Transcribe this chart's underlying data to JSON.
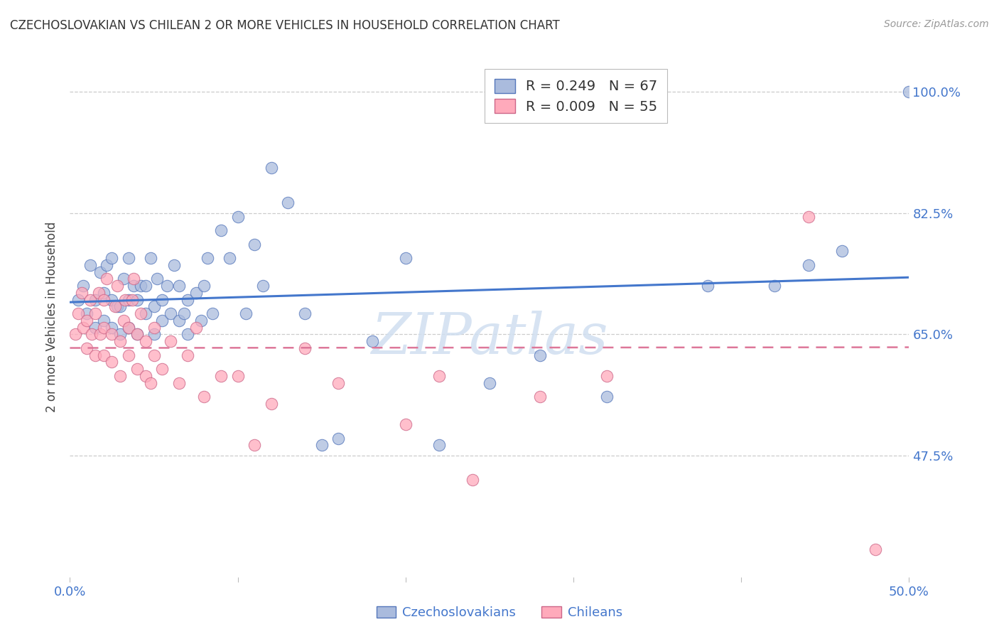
{
  "title": "CZECHOSLOVAKIAN VS CHILEAN 2 OR MORE VEHICLES IN HOUSEHOLD CORRELATION CHART",
  "source": "Source: ZipAtlas.com",
  "ylabel_label": "2 or more Vehicles in Household",
  "xlim": [
    0.0,
    0.5
  ],
  "ylim": [
    0.3,
    1.05
  ],
  "xtick_pos": [
    0.0,
    0.1,
    0.2,
    0.3,
    0.4,
    0.5
  ],
  "xticklabels": [
    "0.0%",
    "",
    "",
    "",
    "",
    "50.0%"
  ],
  "ytick_pos": [
    0.475,
    0.65,
    0.825,
    1.0
  ],
  "ytick_labels": [
    "47.5%",
    "65.0%",
    "82.5%",
    "100.0%"
  ],
  "grid_color": "#cccccc",
  "background_color": "#ffffff",
  "blue_fill": "#aabbdd",
  "blue_edge": "#5577bb",
  "pink_fill": "#ffaabb",
  "pink_edge": "#cc6688",
  "blue_line_color": "#4477cc",
  "pink_line_color": "#dd7799",
  "watermark_color": "#d0dff0",
  "legend_blue_label": "R = 0.249   N = 67",
  "legend_pink_label": "R = 0.009   N = 55",
  "blue_scatter_x": [
    0.005,
    0.008,
    0.01,
    0.012,
    0.015,
    0.015,
    0.018,
    0.02,
    0.02,
    0.022,
    0.025,
    0.025,
    0.025,
    0.028,
    0.03,
    0.03,
    0.032,
    0.035,
    0.035,
    0.035,
    0.038,
    0.04,
    0.04,
    0.042,
    0.045,
    0.045,
    0.048,
    0.05,
    0.05,
    0.052,
    0.055,
    0.055,
    0.058,
    0.06,
    0.062,
    0.065,
    0.065,
    0.068,
    0.07,
    0.07,
    0.075,
    0.078,
    0.08,
    0.082,
    0.085,
    0.09,
    0.095,
    0.1,
    0.105,
    0.11,
    0.115,
    0.12,
    0.13,
    0.14,
    0.15,
    0.16,
    0.18,
    0.2,
    0.22,
    0.25,
    0.28,
    0.32,
    0.38,
    0.42,
    0.44,
    0.46,
    0.5
  ],
  "blue_scatter_y": [
    0.7,
    0.72,
    0.68,
    0.75,
    0.66,
    0.7,
    0.74,
    0.67,
    0.71,
    0.75,
    0.66,
    0.7,
    0.76,
    0.69,
    0.65,
    0.69,
    0.73,
    0.66,
    0.7,
    0.76,
    0.72,
    0.65,
    0.7,
    0.72,
    0.68,
    0.72,
    0.76,
    0.65,
    0.69,
    0.73,
    0.67,
    0.7,
    0.72,
    0.68,
    0.75,
    0.67,
    0.72,
    0.68,
    0.65,
    0.7,
    0.71,
    0.67,
    0.72,
    0.76,
    0.68,
    0.8,
    0.76,
    0.82,
    0.68,
    0.78,
    0.72,
    0.89,
    0.84,
    0.68,
    0.49,
    0.5,
    0.64,
    0.76,
    0.49,
    0.58,
    0.62,
    0.56,
    0.72,
    0.72,
    0.75,
    0.77,
    1.0
  ],
  "pink_scatter_x": [
    0.003,
    0.005,
    0.007,
    0.008,
    0.01,
    0.01,
    0.012,
    0.013,
    0.015,
    0.015,
    0.017,
    0.018,
    0.02,
    0.02,
    0.02,
    0.022,
    0.025,
    0.025,
    0.027,
    0.028,
    0.03,
    0.03,
    0.032,
    0.033,
    0.035,
    0.035,
    0.037,
    0.038,
    0.04,
    0.04,
    0.042,
    0.045,
    0.045,
    0.048,
    0.05,
    0.05,
    0.055,
    0.06,
    0.065,
    0.07,
    0.075,
    0.08,
    0.09,
    0.1,
    0.11,
    0.12,
    0.14,
    0.16,
    0.2,
    0.22,
    0.24,
    0.28,
    0.32,
    0.44,
    0.48
  ],
  "pink_scatter_y": [
    0.65,
    0.68,
    0.71,
    0.66,
    0.63,
    0.67,
    0.7,
    0.65,
    0.62,
    0.68,
    0.71,
    0.65,
    0.62,
    0.66,
    0.7,
    0.73,
    0.61,
    0.65,
    0.69,
    0.72,
    0.59,
    0.64,
    0.67,
    0.7,
    0.62,
    0.66,
    0.7,
    0.73,
    0.6,
    0.65,
    0.68,
    0.59,
    0.64,
    0.58,
    0.62,
    0.66,
    0.6,
    0.64,
    0.58,
    0.62,
    0.66,
    0.56,
    0.59,
    0.59,
    0.49,
    0.55,
    0.63,
    0.58,
    0.52,
    0.59,
    0.44,
    0.56,
    0.59,
    0.82,
    0.34
  ]
}
